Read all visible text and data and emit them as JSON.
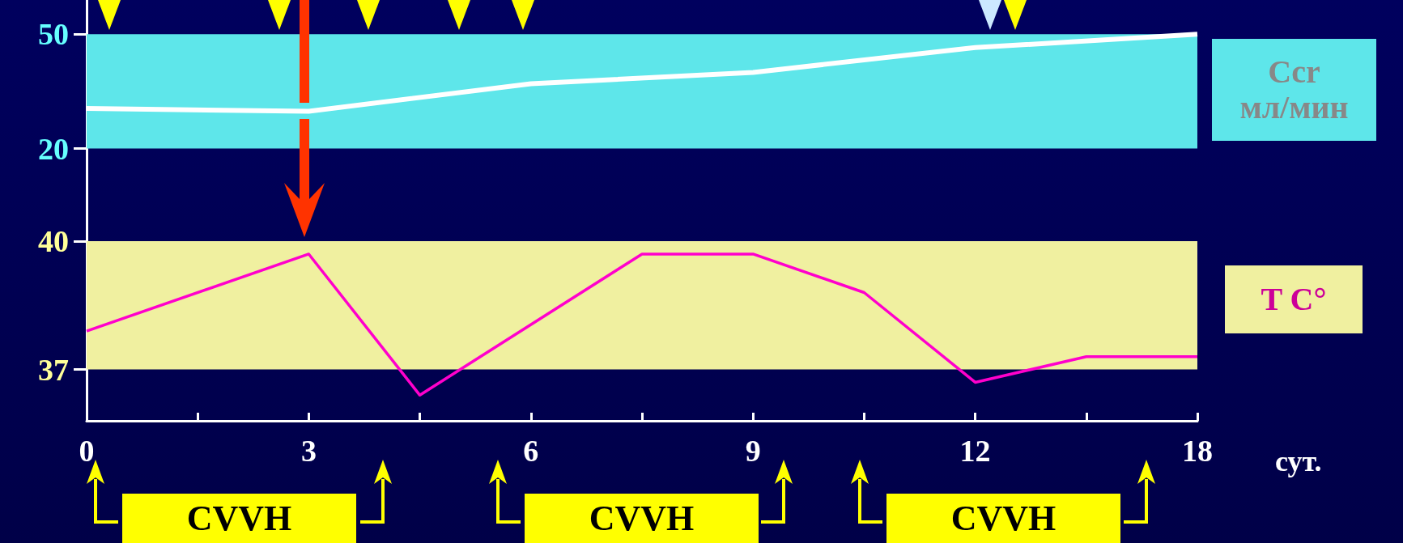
{
  "chart_data": [
    {
      "type": "line",
      "ylabel": "Ccr\nмл/мин",
      "categories": [
        "0",
        null,
        "3",
        null,
        "6",
        null,
        "9",
        null,
        "12",
        null,
        "18"
      ],
      "series": [
        {
          "color": "#ffffff",
          "values": [
            30.5,
            null,
            29.8,
            null,
            37,
            null,
            40,
            null,
            46.5,
            null,
            50
          ]
        }
      ],
      "ylim": [
        8,
        59
      ],
      "yticks": [
        20,
        50
      ],
      "tick_labels": "y",
      "marker": "none",
      "grid": false,
      "bands": [
        {
          "axis": "y",
          "from": 20,
          "to": 50,
          "color": "#5ee6ea"
        }
      ]
    },
    {
      "type": "line",
      "ylabel": "T C°",
      "xlabel": "сут.",
      "categories": [
        "0",
        null,
        "3",
        null,
        "6",
        null,
        "9",
        null,
        "12",
        null,
        "18"
      ],
      "series": [
        {
          "color": "#ff00cc",
          "values": [
            37.9,
            null,
            39.7,
            36.4,
            null,
            39.7,
            39.7,
            38.8,
            36.7,
            37.3,
            37.3
          ]
        }
      ],
      "ylim": [
        35.8,
        41.1
      ],
      "yticks": [
        37,
        40
      ],
      "marker": "none",
      "grid": false,
      "bands": [
        {
          "axis": "y",
          "from": 37,
          "to": 40,
          "color": "#f0f0a0"
        }
      ],
      "annotations": [
        "CVVH",
        "CVVH",
        "CVVH"
      ]
    }
  ]
}
